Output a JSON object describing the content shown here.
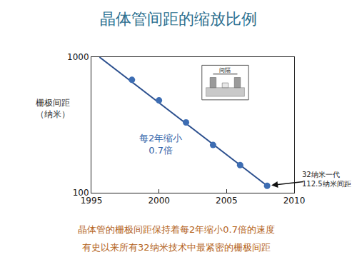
{
  "chart_data": {
    "type": "scatter",
    "title": "晶体管间距的缩放比例",
    "y_label": "栅极间距\n（纳米）",
    "log": "y",
    "grid": false,
    "xlim": [
      1995,
      2010
    ],
    "xticks": [
      1995,
      2000,
      2005,
      2010
    ],
    "ylim": [
      100,
      1000
    ],
    "yticks": [
      100,
      1000
    ],
    "series": [
      {
        "type": "line",
        "color": "#2b4f8e",
        "x": [
          1995.6,
          2008
        ],
        "values": [
          1000,
          112.5
        ]
      },
      {
        "type": "scatter",
        "color": "#3d6db3",
        "marker": "circle",
        "x": [
          1998,
          2000,
          2002,
          2004,
          2006,
          2008
        ],
        "values": [
          680,
          480,
          330,
          225,
          160,
          112.5
        ]
      }
    ],
    "annotations": {
      "trend": "每2年缩小\n0.7倍",
      "callout": "32纳米一代\n112.5纳米间距",
      "inset": "间隔"
    },
    "caption": [
      "晶体管的栅极间距保持着每2年缩小0.7倍的速度",
      "有史以来所有32纳米技术中最紧密的栅极间距"
    ]
  }
}
